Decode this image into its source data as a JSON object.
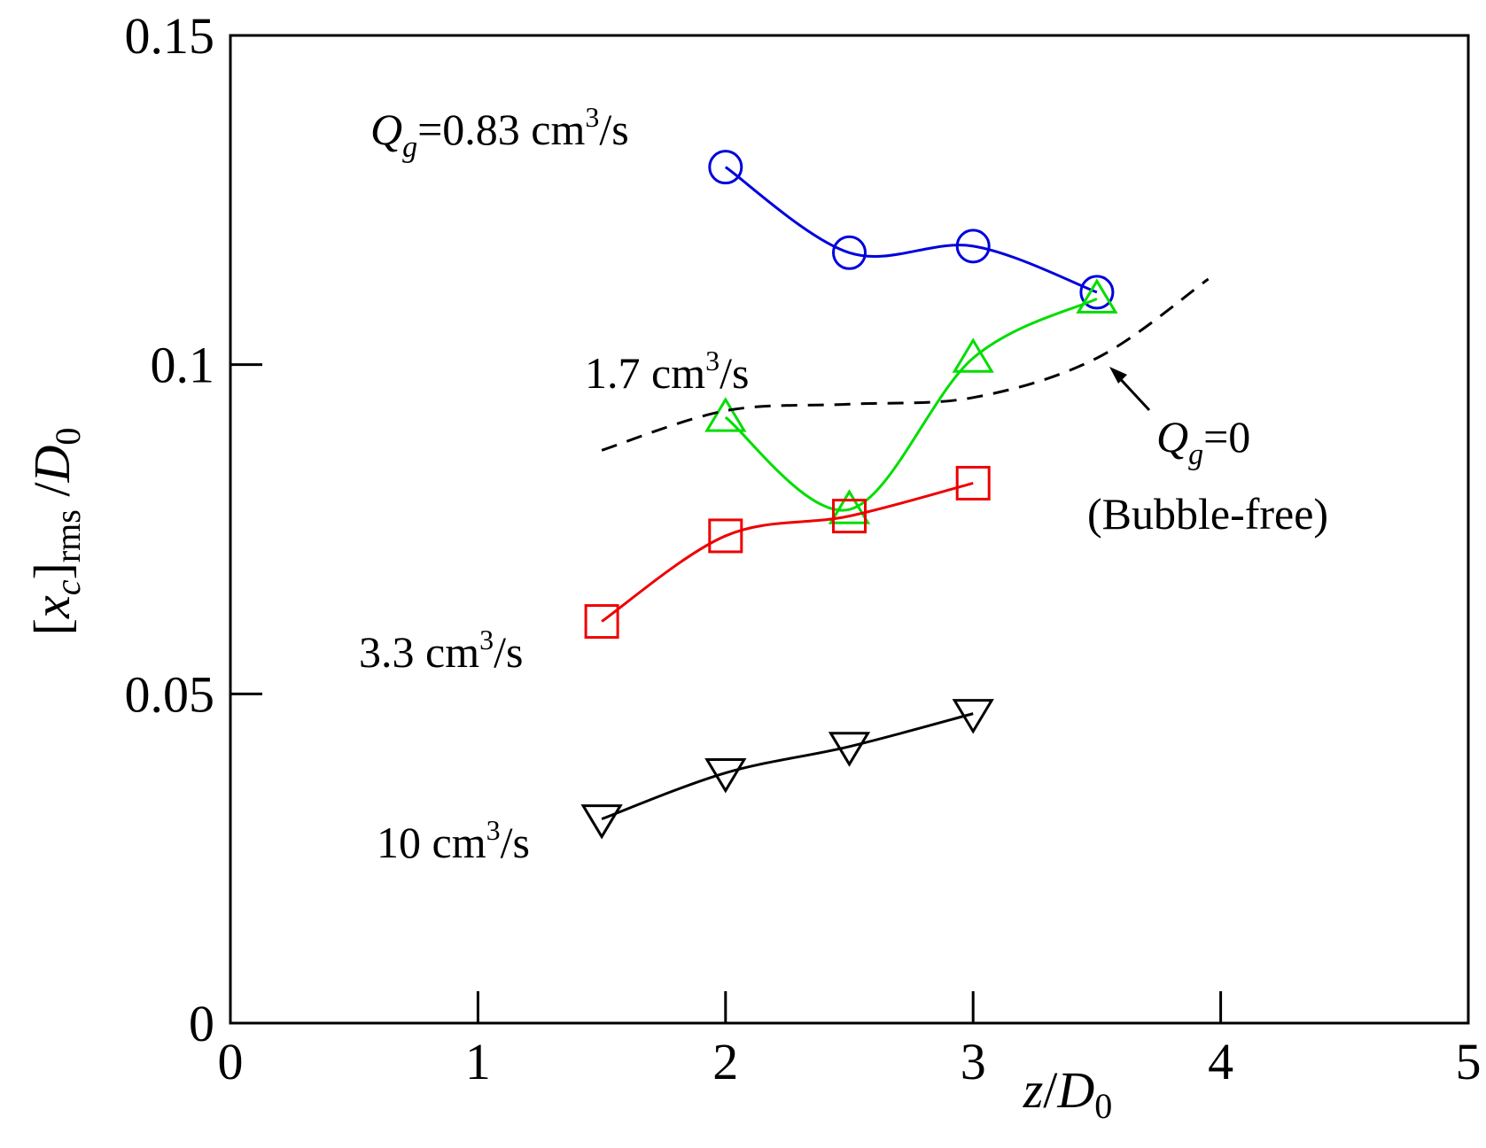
{
  "chart_data": {
    "type": "line",
    "xlim": [
      0,
      5
    ],
    "ylim": [
      0,
      0.15
    ],
    "x_ticks": [
      "0",
      "1",
      "2",
      "3",
      "4",
      "5"
    ],
    "y_ticks": [
      "0",
      "0.05",
      "0.1",
      "0.15"
    ],
    "xlabel": {
      "var": "z",
      "sep": "/",
      "base": "D",
      "sub": "0"
    },
    "ylabel": {
      "open": "[",
      "var": "x",
      "var_sub": "c",
      "close": "]",
      "sub": "rms",
      "sep": " /",
      "base": "D",
      "base_sub": "0"
    },
    "grid": false,
    "series": [
      {
        "name": "Qg=0.83 cm3/s",
        "color": "#0000dd",
        "marker": "circle",
        "x": [
          2.0,
          2.5,
          3.0,
          3.5
        ],
        "y": [
          0.13,
          0.117,
          0.118,
          0.111
        ]
      },
      {
        "name": "1.7 cm3/s",
        "color": "#00dd00",
        "marker": "triangle-up",
        "x": [
          2.0,
          2.5,
          3.0,
          3.5
        ],
        "y": [
          0.092,
          0.078,
          0.101,
          0.11
        ]
      },
      {
        "name": "3.3 cm3/s",
        "color": "#ee0000",
        "marker": "square",
        "x": [
          1.5,
          2.0,
          2.5,
          3.0
        ],
        "y": [
          0.061,
          0.074,
          0.077,
          0.082
        ]
      },
      {
        "name": "10 cm3/s",
        "color": "#000000",
        "marker": "triangle-down",
        "x": [
          1.5,
          2.0,
          2.5,
          3.0
        ],
        "y": [
          0.031,
          0.038,
          0.042,
          0.047
        ]
      },
      {
        "name": "Qg=0 (Bubble-free)",
        "color": "#000000",
        "marker": "none",
        "dashed": true,
        "x": [
          1.5,
          2.0,
          2.5,
          3.0,
          3.5,
          3.95
        ],
        "y": [
          0.087,
          0.093,
          0.094,
          0.095,
          0.101,
          0.113
        ]
      }
    ],
    "annotations": {
      "q083": {
        "q": "Q",
        "g": "g",
        "value": "=0.83 cm",
        "sup": "3",
        "unit": "/s"
      },
      "q17": {
        "value": "1.7 cm",
        "sup": "3",
        "unit": "/s"
      },
      "q33": {
        "value": "3.3 cm",
        "sup": "3",
        "unit": "/s"
      },
      "q10": {
        "value": "10 cm",
        "sup": "3",
        "unit": "/s"
      },
      "q0": {
        "q": "Q",
        "g": "g",
        "value": "=0",
        "note": "(Bubble-free)"
      }
    }
  }
}
